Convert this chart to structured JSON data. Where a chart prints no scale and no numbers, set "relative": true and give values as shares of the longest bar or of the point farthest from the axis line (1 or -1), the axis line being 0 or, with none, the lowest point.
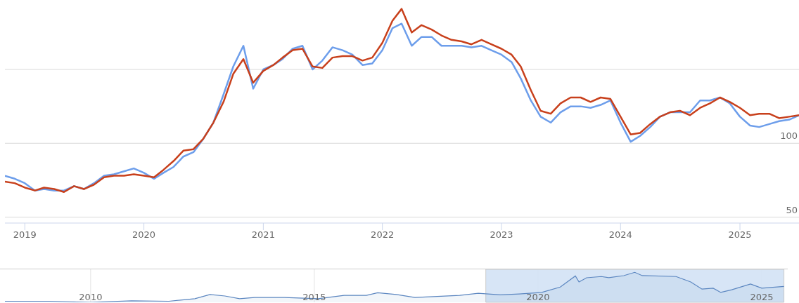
{
  "chart_data": [
    {
      "type": "line",
      "x": [
        "2018-11",
        "2018-12",
        "2019-01",
        "2019-02",
        "2019-03",
        "2019-04",
        "2019-05",
        "2019-06",
        "2019-07",
        "2019-08",
        "2019-09",
        "2019-10",
        "2019-11",
        "2019-12",
        "2020-01",
        "2020-02",
        "2020-03",
        "2020-04",
        "2020-05",
        "2020-06",
        "2020-07",
        "2020-08",
        "2020-09",
        "2020-10",
        "2020-11",
        "2020-12",
        "2021-01",
        "2021-02",
        "2021-03",
        "2021-04",
        "2021-05",
        "2021-06",
        "2021-07",
        "2021-08",
        "2021-09",
        "2021-10",
        "2021-11",
        "2021-12",
        "2022-01",
        "2022-02",
        "2022-03",
        "2022-04",
        "2022-05",
        "2022-06",
        "2022-07",
        "2022-08",
        "2022-09",
        "2022-10",
        "2022-11",
        "2022-12",
        "2023-01",
        "2023-02",
        "2023-03",
        "2023-04",
        "2023-05",
        "2023-06",
        "2023-07",
        "2023-08",
        "2023-09",
        "2023-10",
        "2023-11",
        "2023-12",
        "2024-01",
        "2024-02",
        "2024-03",
        "2024-04",
        "2024-05",
        "2024-06",
        "2024-07",
        "2024-08",
        "2024-09",
        "2024-10",
        "2024-11",
        "2024-12",
        "2025-01",
        "2025-02",
        "2025-03",
        "2025-04",
        "2025-05",
        "2025-06",
        "2025-07"
      ],
      "series": [
        {
          "color": "#6d9eeb",
          "values": [
            78,
            76,
            73,
            68,
            69,
            68,
            68,
            71,
            69,
            73,
            78,
            79,
            81,
            83,
            80,
            76,
            80,
            84,
            91,
            94,
            103,
            114,
            133,
            152,
            166,
            137,
            150,
            153,
            157,
            164,
            166,
            150,
            156,
            165,
            163,
            160,
            153,
            154,
            163,
            178,
            181,
            166,
            172,
            172,
            166,
            166,
            166,
            165,
            166,
            163,
            160,
            155,
            144,
            129,
            118,
            114,
            121,
            125,
            125,
            124,
            126,
            129,
            114,
            101,
            105,
            111,
            118,
            121,
            121,
            121,
            129,
            129,
            131,
            127,
            118,
            112,
            111,
            113,
            115,
            116,
            119
          ]
        },
        {
          "color": "#c8401c",
          "values": [
            74,
            73,
            70,
            68,
            70,
            69,
            67,
            71,
            69,
            72,
            77,
            78,
            78,
            79,
            78,
            77,
            82,
            88,
            95,
            96,
            103,
            114,
            128,
            147,
            157,
            141,
            149,
            153,
            158,
            163,
            164,
            152,
            151,
            158,
            159,
            159,
            156,
            158,
            168,
            183,
            191,
            175,
            180,
            177,
            173,
            170,
            169,
            167,
            170,
            167,
            164,
            160,
            152,
            136,
            122,
            120,
            127,
            131,
            131,
            128,
            131,
            130,
            118,
            106,
            107,
            113,
            118,
            121,
            122,
            119,
            124,
            127,
            131,
            128,
            124,
            119,
            120,
            120,
            117,
            118,
            119
          ]
        }
      ],
      "xlim": [
        "2018-11",
        "2025-07"
      ],
      "ylim": [
        46,
        197
      ],
      "xticks": [
        "2019",
        "2020",
        "2021",
        "2022",
        "2023",
        "2024",
        "2025"
      ],
      "yticks": [
        50,
        100,
        {
          "value": 150,
          "label": null
        }
      ],
      "grid": "y"
    },
    {
      "type": "area",
      "relative": true,
      "x": [
        "2008-02",
        "2009-02",
        "2010-01",
        "2010-12",
        "2011-10",
        "2012-05",
        "2012-09",
        "2013-01",
        "2013-05",
        "2013-09",
        "2014-05",
        "2015-02",
        "2015-09",
        "2016-03",
        "2016-06",
        "2016-11",
        "2017-04",
        "2017-09",
        "2018-04",
        "2018-09",
        "2019-03",
        "2019-08",
        "2020-02",
        "2020-07",
        "2020-11",
        "2020-12",
        "2021-02",
        "2021-06",
        "2021-08",
        "2021-12",
        "2022-03",
        "2022-05",
        "2023-02",
        "2023-06",
        "2023-09",
        "2023-12",
        "2024-02",
        "2024-05",
        "2024-10",
        "2025-01",
        "2025-07"
      ],
      "values": [
        0.035,
        0.035,
        0,
        0.05,
        0.035,
        0.12,
        0.26,
        0.21,
        0.12,
        0.16,
        0.16,
        0.12,
        0.23,
        0.23,
        0.32,
        0.26,
        0.16,
        0.19,
        0.23,
        0.3,
        0.25,
        0.28,
        0.33,
        0.51,
        0.88,
        0.68,
        0.82,
        0.86,
        0.82,
        0.89,
        1,
        0.89,
        0.86,
        0.68,
        0.44,
        0.47,
        0.33,
        0.42,
        0.61,
        0.47,
        0.53
      ],
      "color": "#5b86c0",
      "xlim": [
        "2008-02",
        "2025-08"
      ],
      "xticks": [
        "2010",
        "2015",
        "2020",
        "2025"
      ],
      "grid": "x",
      "bands": [
        {
          "axis": "x",
          "from": "2018-11",
          "to": "2025-07",
          "color": "#d3e2f5"
        }
      ]
    }
  ]
}
